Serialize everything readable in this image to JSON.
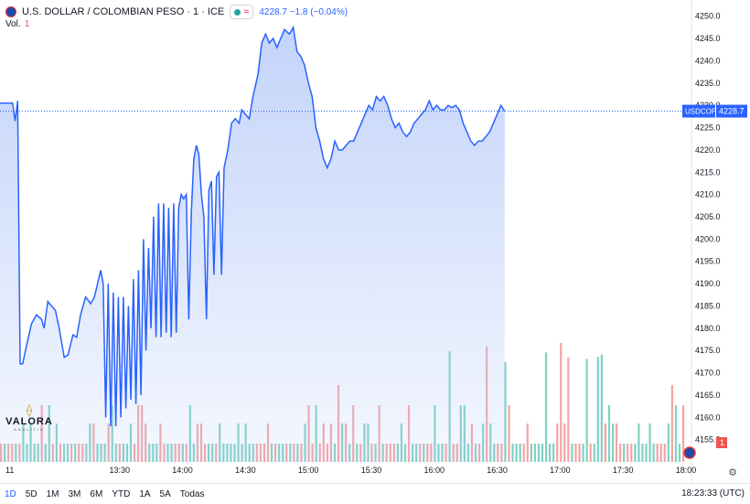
{
  "legend": {
    "symbol": "U.S. DOLLAR / COLOMBIAN PESO · 1 · ICE",
    "price_info": "4228.7  −1.8 (−0.04%)",
    "volume_label": "Vol.",
    "volume_value": "1"
  },
  "price_tag": {
    "symbol": "USDCOP",
    "value": "4228.7"
  },
  "volume_tag": "1",
  "logo": {
    "text": "VALORA",
    "sub": "ANALITIK"
  },
  "timeframes": [
    "1D",
    "5D",
    "1M",
    "3M",
    "6M",
    "YTD",
    "1A",
    "5A",
    "Todas"
  ],
  "active_timeframe": "1D",
  "clock": "18:23:33 (UTC)",
  "colors": {
    "line": "#2962ff",
    "fill": "#b9ccf9",
    "vol_up": "#7fd1c4",
    "vol_down": "#f5a3a3",
    "last_price": "#2962ff"
  },
  "chart_data": {
    "type": "area",
    "y_ticks": [
      "4155.0",
      "4160.0",
      "4165.0",
      "4170.0",
      "4175.0",
      "4180.0",
      "4185.0",
      "4190.0",
      "4195.0",
      "4200.0",
      "4205.0",
      "4210.0",
      "4215.0",
      "4220.0",
      "4225.0",
      "4230.0",
      "4235.0",
      "4240.0",
      "4245.0",
      "4250.0"
    ],
    "ylim": [
      4150,
      4252
    ],
    "x_ticks": [
      "11",
      "13:30",
      "14:00",
      "14:30",
      "15:00",
      "15:30",
      "16:00",
      "16:30",
      "17:00",
      "17:30",
      "18:00"
    ],
    "x_tick_times": [
      12.6,
      13.5,
      14.0,
      14.5,
      15.0,
      15.5,
      16.0,
      16.5,
      17.0,
      17.5,
      18.0
    ],
    "xlim": [
      12.55,
      18.0
    ],
    "last_price": 4228.7,
    "series": [
      {
        "values": [
          [
            12.55,
            4230.5
          ],
          [
            12.65,
            4230.5
          ],
          [
            12.67,
            4226.5
          ],
          [
            12.69,
            4231.0
          ],
          [
            12.71,
            4172.0
          ],
          [
            12.73,
            4172.0
          ],
          [
            12.76,
            4176.0
          ],
          [
            12.8,
            4181.0
          ],
          [
            12.84,
            4183.0
          ],
          [
            12.88,
            4182.0
          ],
          [
            12.9,
            4180.0
          ],
          [
            12.93,
            4186.0
          ],
          [
            12.96,
            4185.0
          ],
          [
            12.99,
            4184.0
          ],
          [
            13.02,
            4180.0
          ],
          [
            13.06,
            4173.5
          ],
          [
            13.09,
            4174.0
          ],
          [
            13.13,
            4178.5
          ],
          [
            13.16,
            4178.0
          ],
          [
            13.19,
            4183.0
          ],
          [
            13.23,
            4187.0
          ],
          [
            13.27,
            4185.5
          ],
          [
            13.3,
            4187.0
          ],
          [
            13.35,
            4193.0
          ],
          [
            13.37,
            4190.0
          ],
          [
            13.39,
            4160.0
          ],
          [
            13.41,
            4190.0
          ],
          [
            13.43,
            4158.0
          ],
          [
            13.45,
            4188.0
          ],
          [
            13.47,
            4158.0
          ],
          [
            13.49,
            4187.0
          ],
          [
            13.51,
            4160.0
          ],
          [
            13.53,
            4187.0
          ],
          [
            13.55,
            4162.0
          ],
          [
            13.57,
            4185.0
          ],
          [
            13.59,
            4164.0
          ],
          [
            13.61,
            4191.0
          ],
          [
            13.63,
            4163.0
          ],
          [
            13.65,
            4193.0
          ],
          [
            13.67,
            4165.0
          ],
          [
            13.69,
            4200.0
          ],
          [
            13.71,
            4175.0
          ],
          [
            13.73,
            4198.0
          ],
          [
            13.75,
            4180.0
          ],
          [
            13.77,
            4205.0
          ],
          [
            13.79,
            4178.0
          ],
          [
            13.81,
            4208.0
          ],
          [
            13.83,
            4178.0
          ],
          [
            13.85,
            4208.0
          ],
          [
            13.87,
            4179.0
          ],
          [
            13.89,
            4207.0
          ],
          [
            13.91,
            4178.0
          ],
          [
            13.93,
            4208.0
          ],
          [
            13.95,
            4179.0
          ],
          [
            13.97,
            4207.0
          ],
          [
            13.99,
            4210.0
          ],
          [
            14.01,
            4209.0
          ],
          [
            14.03,
            4210.0
          ],
          [
            14.05,
            4182.0
          ],
          [
            14.07,
            4206.0
          ],
          [
            14.09,
            4218.0
          ],
          [
            14.11,
            4221.0
          ],
          [
            14.13,
            4219.0
          ],
          [
            14.15,
            4210.0
          ],
          [
            14.17,
            4205.0
          ],
          [
            14.19,
            4182.0
          ],
          [
            14.21,
            4211.0
          ],
          [
            14.23,
            4213.0
          ],
          [
            14.25,
            4192.0
          ],
          [
            14.27,
            4214.0
          ],
          [
            14.29,
            4215.0
          ],
          [
            14.31,
            4192.0
          ],
          [
            14.33,
            4216.0
          ],
          [
            14.36,
            4220.0
          ],
          [
            14.39,
            4226.0
          ],
          [
            14.42,
            4227.0
          ],
          [
            14.45,
            4226.0
          ],
          [
            14.47,
            4229.0
          ],
          [
            14.5,
            4228.0
          ],
          [
            14.53,
            4227.0
          ],
          [
            14.56,
            4232.0
          ],
          [
            14.6,
            4237.0
          ],
          [
            14.63,
            4244.0
          ],
          [
            14.66,
            4246.0
          ],
          [
            14.69,
            4244.0
          ],
          [
            14.72,
            4245.0
          ],
          [
            14.75,
            4243.0
          ],
          [
            14.78,
            4245.0
          ],
          [
            14.81,
            4247.0
          ],
          [
            14.85,
            4246.0
          ],
          [
            14.88,
            4247.5
          ],
          [
            14.91,
            4242.0
          ],
          [
            14.94,
            4241.0
          ],
          [
            14.97,
            4239.0
          ],
          [
            15.0,
            4235.0
          ],
          [
            15.03,
            4232.0
          ],
          [
            15.06,
            4225.0
          ],
          [
            15.09,
            4222.0
          ],
          [
            15.12,
            4218.0
          ],
          [
            15.15,
            4216.0
          ],
          [
            15.18,
            4218.0
          ],
          [
            15.21,
            4222.0
          ],
          [
            15.24,
            4220.0
          ],
          [
            15.27,
            4220.0
          ],
          [
            15.3,
            4221.0
          ],
          [
            15.33,
            4222.0
          ],
          [
            15.36,
            4222.0
          ],
          [
            15.39,
            4224.0
          ],
          [
            15.42,
            4226.0
          ],
          [
            15.45,
            4228.0
          ],
          [
            15.48,
            4230.0
          ],
          [
            15.51,
            4229.0
          ],
          [
            15.54,
            4232.0
          ],
          [
            15.57,
            4231.0
          ],
          [
            15.6,
            4232.0
          ],
          [
            15.63,
            4230.0
          ],
          [
            15.66,
            4227.0
          ],
          [
            15.69,
            4225.0
          ],
          [
            15.72,
            4226.0
          ],
          [
            15.75,
            4224.0
          ],
          [
            15.78,
            4223.0
          ],
          [
            15.81,
            4224.0
          ],
          [
            15.84,
            4226.0
          ],
          [
            15.87,
            4227.0
          ],
          [
            15.9,
            4228.0
          ],
          [
            15.93,
            4229.0
          ],
          [
            15.96,
            4231.0
          ],
          [
            15.99,
            4229.0
          ],
          [
            16.02,
            4230.0
          ],
          [
            16.05,
            4229.0
          ],
          [
            16.08,
            4229.0
          ],
          [
            16.11,
            4230.0
          ],
          [
            16.14,
            4229.5
          ],
          [
            16.17,
            4230.0
          ],
          [
            16.2,
            4229.0
          ],
          [
            16.23,
            4226.0
          ],
          [
            16.26,
            4224.0
          ],
          [
            16.29,
            4222.0
          ],
          [
            16.32,
            4221.0
          ],
          [
            16.35,
            4222.0
          ],
          [
            16.38,
            4222.0
          ],
          [
            16.41,
            4223.0
          ],
          [
            16.44,
            4224.0
          ],
          [
            16.47,
            4226.0
          ],
          [
            16.5,
            4228.0
          ],
          [
            16.53,
            4230.0
          ],
          [
            16.56,
            4228.7
          ]
        ]
      }
    ],
    "volume": {
      "values": [
        1,
        1,
        2,
        1,
        1,
        3,
        2,
        1,
        2,
        4,
        1,
        2,
        3,
        1,
        1,
        2,
        1,
        5,
        2,
        1,
        1,
        2,
        3,
        1,
        2,
        1,
        1,
        2,
        1,
        1
      ]
    }
  }
}
